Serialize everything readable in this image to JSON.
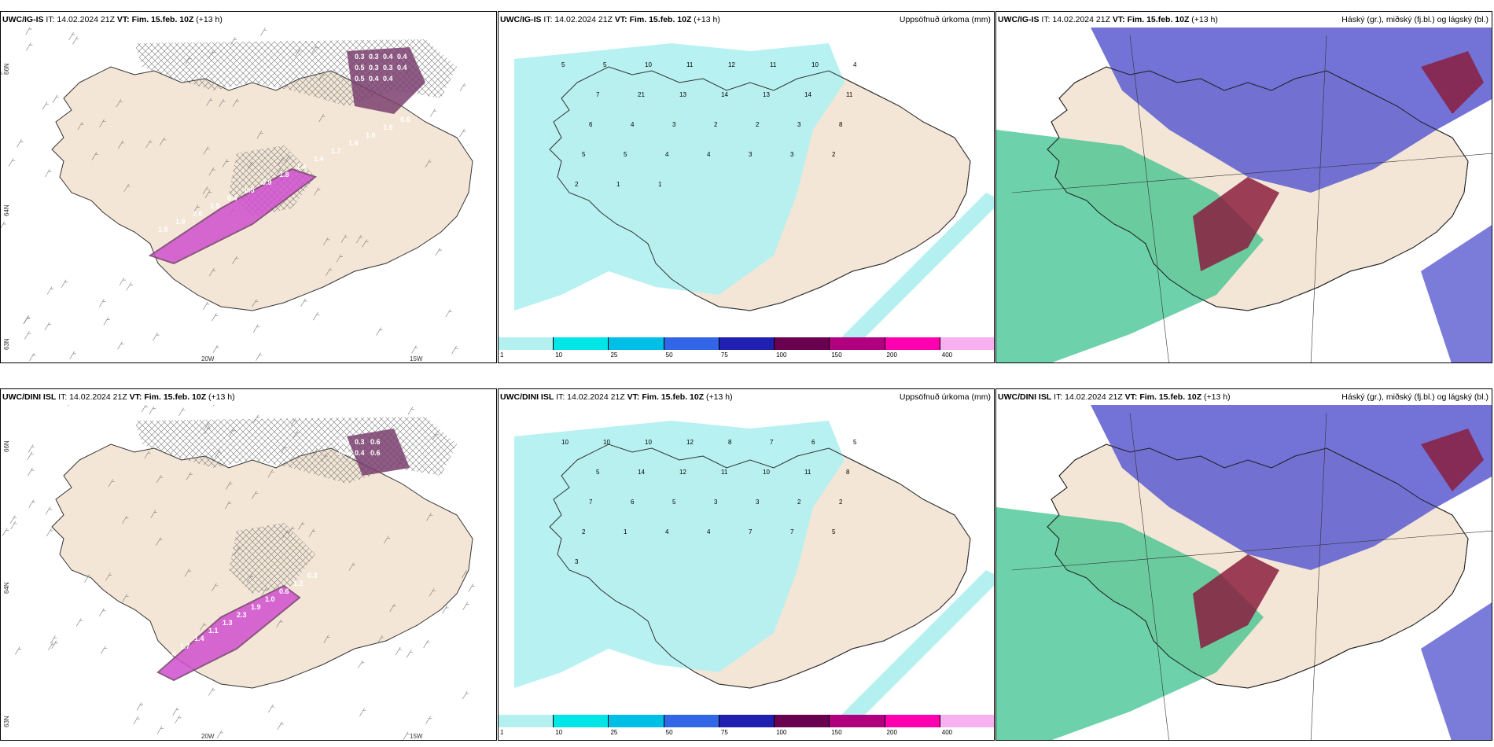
{
  "colors": {
    "land": "#f3e6d6",
    "sea": "#ffffff",
    "precip_light": "#b4f0f0",
    "ice": "#7a3f6f",
    "ice_bright": "#d050d0",
    "high_cloud": "#5a5ad0",
    "mid_cloud": "#2fbf88",
    "low_cloud": "#8a1e3e"
  },
  "rows": [
    {
      "model": "UWC/IG-IS",
      "panels": [
        {
          "model": "UWC/IG-IS",
          "it_label": "IT: 14.02.2024 21Z",
          "vt_prefix": "VT:",
          "vt": "Fim. 15.feb. 10Z",
          "lead": "(+13 h)",
          "right_title": ""
        },
        {
          "model": "UWC/IG-IS",
          "it_label": "IT: 14.02.2024 21Z",
          "vt_prefix": "VT:",
          "vt": "Fim. 15.feb. 10Z",
          "lead": "(+13 h)",
          "right_title": "Uppsöfnuð úrkoma (mm)"
        },
        {
          "model": "UWC/IG-IS",
          "it_label": "IT: 14.02.2024 21Z",
          "vt_prefix": "VT:",
          "vt": "Fim. 15.feb. 10Z",
          "lead": "(+13 h)",
          "right_title": "Háský (gr.), miðský (fj.bl.) og lágský (bl.)"
        }
      ]
    },
    {
      "model": "UWC/DINI ISL",
      "panels": [
        {
          "model": "UWC/DINI ISL",
          "it_label": "IT: 14.02.2024 21Z",
          "vt_prefix": "VT:",
          "vt": "Fim. 15.feb. 10Z",
          "lead": "(+13 h)",
          "right_title": ""
        },
        {
          "model": "UWC/DINI ISL",
          "it_label": "IT: 14.02.2024 21Z",
          "vt_prefix": "VT:",
          "vt": "Fim. 15.feb. 10Z",
          "lead": "(+13 h)",
          "right_title": "Uppsöfnuð úrkoma (mm)"
        },
        {
          "model": "UWC/DINI ISL",
          "it_label": "IT: 14.02.2024 21Z",
          "vt_prefix": "VT:",
          "vt": "Fim. 15.feb. 10Z",
          "lead": "(+13 h)",
          "right_title": "Háský (gr.), miðský (fj.bl.) og lágský (bl.)"
        }
      ]
    }
  ],
  "axis_labels": {
    "lon_20w": "20W",
    "lon_15w": "15W",
    "lat_66n": "66N",
    "lat_64n": "64N",
    "lat_63n": "63N"
  },
  "precip_colorbar": {
    "labels": [
      "1",
      "10",
      "25",
      "50",
      "75",
      "100",
      "150",
      "200",
      "400"
    ],
    "colors": [
      "#b4f0f0",
      "#00e6e6",
      "#00bfe6",
      "#3366e6",
      "#2020b0",
      "#6a0050",
      "#b00080",
      "#ff00b0",
      "#f8b0f0"
    ]
  },
  "top_ice_labels": [
    "0.3",
    "0.3",
    "0.4",
    "0.4",
    "0.5",
    "0.3",
    "0.3",
    "0.4",
    "0.5",
    "0.4",
    "0.4",
    "1.9",
    "1.9",
    "2.0",
    "1.5",
    "0.4",
    "0.5",
    "0.9",
    "1.8",
    "1.4",
    "1.4",
    "1.7",
    "1.4",
    "1.0",
    "1.6",
    "0.6"
  ],
  "bottom_ice_labels": [
    "0.4",
    "0.3",
    "0.6",
    "0.4",
    "0.4",
    "0.6",
    "1.4",
    "1.7",
    "1.4",
    "1.1",
    "1.3",
    "2.3",
    "1.9",
    "1.0",
    "0.6",
    "1.2",
    "0.3"
  ],
  "top_precip_labels": [
    "5",
    "5",
    "10",
    "11",
    "12",
    "11",
    "10",
    "4",
    "7",
    "21",
    "13",
    "14",
    "13",
    "14",
    "11",
    "6",
    "4",
    "3",
    "2",
    "2",
    "3",
    "8",
    "5",
    "5",
    "4",
    "4",
    "3",
    "3",
    "2",
    "2",
    "1",
    "1"
  ],
  "bottom_precip_labels": [
    "10",
    "10",
    "10",
    "12",
    "8",
    "7",
    "6",
    "5",
    "5",
    "14",
    "12",
    "11",
    "10",
    "11",
    "8",
    "7",
    "6",
    "5",
    "3",
    "3",
    "2",
    "2",
    "2",
    "1",
    "4",
    "4",
    "7",
    "7",
    "5",
    "3"
  ]
}
